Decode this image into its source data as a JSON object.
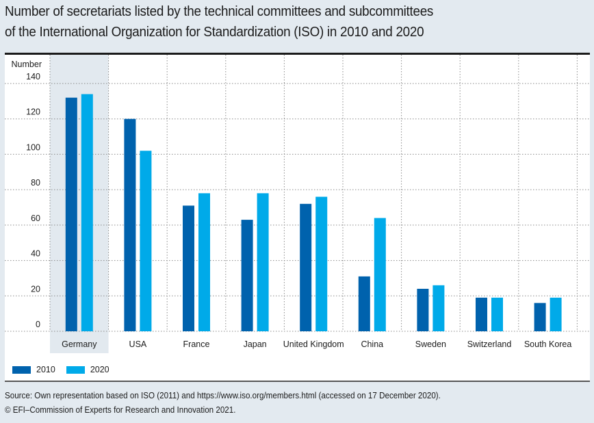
{
  "title": {
    "line1": "Number of secretariats listed by the technical committees and subcommittees",
    "line2": "of the International Organization for Standardization (ISO) in 2010 and 2020"
  },
  "colors": {
    "series_2010": "#0062ad",
    "series_2020": "#00aae9",
    "highlight": "#e2e9ef",
    "background": "#e3eaf0"
  },
  "chart_data": {
    "type": "bar",
    "title": "Number of secretariats listed by the technical committees and subcommittees of the International Organization for Standardization (ISO) in 2010 and 2020",
    "xlabel": "",
    "ylabel": "Number",
    "ylim": [
      0,
      140
    ],
    "yticks": [
      0,
      20,
      40,
      60,
      80,
      100,
      120,
      140
    ],
    "grid": true,
    "highlighted_category": "Germany",
    "legend_position": "bottom-left",
    "categories": [
      "Germany",
      "USA",
      "France",
      "Japan",
      "United Kingdom",
      "China",
      "Sweden",
      "Switzerland",
      "South Korea"
    ],
    "series": [
      {
        "name": "2010",
        "values": [
          132,
          120,
          71,
          63,
          72,
          31,
          24,
          19,
          16
        ]
      },
      {
        "name": "2020",
        "values": [
          134,
          102,
          78,
          78,
          76,
          64,
          26,
          19,
          19
        ]
      }
    ]
  },
  "legend": [
    {
      "label": "2010"
    },
    {
      "label": "2020"
    }
  ],
  "source": {
    "line1": "Source: Own representation based on ISO (2011) and https://www.iso.org/members.html (accessed on 17 December 2020).",
    "line2": "© EFI–Commission of Experts for Research and Innovation 2021."
  }
}
